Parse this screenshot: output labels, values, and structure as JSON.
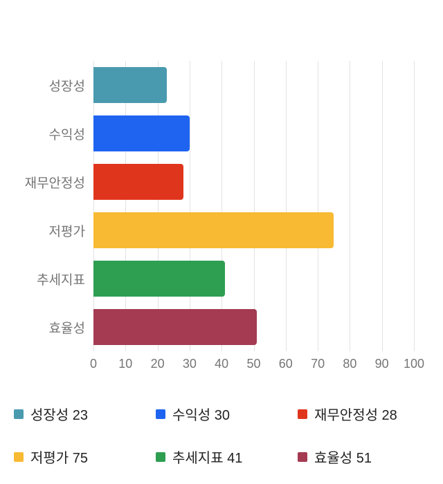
{
  "chart_data": {
    "type": "bar",
    "orientation": "horizontal",
    "title": "",
    "categories": [
      "성장성",
      "수익성",
      "재무안정성",
      "저평가",
      "추세지표",
      "효율성"
    ],
    "values": [
      23,
      30,
      28,
      75,
      41,
      51
    ],
    "colors": [
      "#4a9aaf",
      "#1e64f0",
      "#e0351d",
      "#f8ba33",
      "#2e9e51",
      "#a43b52"
    ],
    "xlim": [
      0,
      100
    ],
    "x_ticks": [
      0,
      10,
      20,
      30,
      40,
      50,
      60,
      70,
      80,
      90,
      100
    ],
    "grid": true,
    "gridline_color": "#e2e2e2",
    "axis_label_color": "#757575",
    "legend_position": "bottom",
    "legend": [
      {
        "label": "성장성 23",
        "color": "#4a9aaf"
      },
      {
        "label": "수익성 30",
        "color": "#1e64f0"
      },
      {
        "label": "재무안정성 28",
        "color": "#e0351d"
      },
      {
        "label": "저평가 75",
        "color": "#f8ba33"
      },
      {
        "label": "추세지표 41",
        "color": "#2e9e51"
      },
      {
        "label": "효율성 51",
        "color": "#a43b52"
      }
    ]
  }
}
